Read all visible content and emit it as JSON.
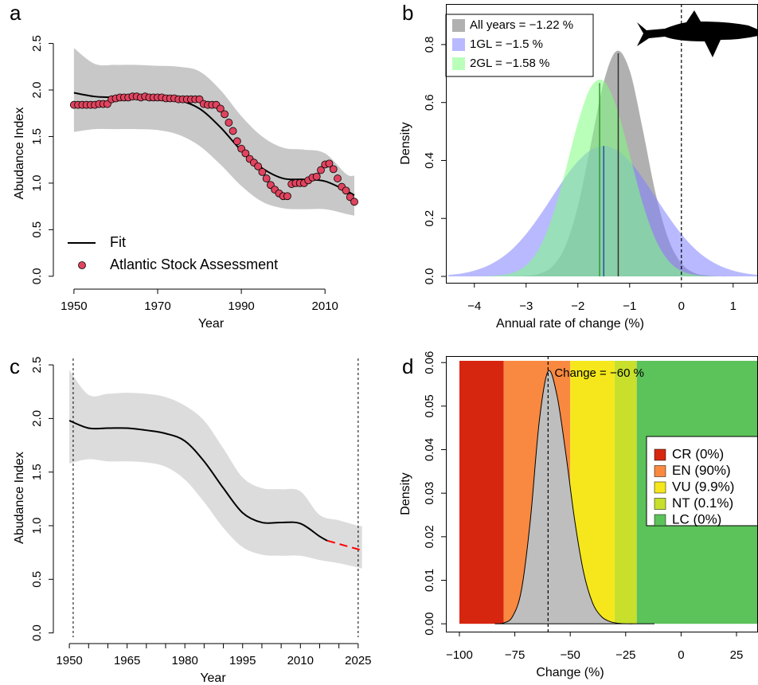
{
  "chart_data": [
    {
      "label": "a",
      "type": "line",
      "xlabel": "Year",
      "ylabel": "Abudance Index",
      "xlim": [
        1946.6,
        2018.9
      ],
      "ylim": [
        -0.07,
        2.71
      ],
      "xticks": [
        1950,
        1970,
        1990,
        2010
      ],
      "yticks": [
        {
          "value": 0,
          "label": "0.0"
        },
        0.5,
        {
          "value": 1,
          "label": "1.0"
        },
        1.5,
        {
          "value": 2,
          "label": "2.0"
        },
        2.5
      ],
      "band": {
        "color": "#c8c8c8",
        "x": [
          1950,
          1955,
          1960,
          1965,
          1970,
          1975,
          1980,
          1985,
          1990,
          1995,
          2000,
          2005,
          2010,
          2015,
          2017
        ],
        "lower": [
          1.55,
          1.58,
          1.58,
          1.58,
          1.57,
          1.52,
          1.4,
          1.2,
          0.97,
          0.8,
          0.73,
          0.72,
          0.72,
          0.67,
          0.65
        ],
        "upper": [
          2.45,
          2.28,
          2.27,
          2.27,
          2.26,
          2.25,
          2.2,
          2.0,
          1.72,
          1.5,
          1.38,
          1.36,
          1.32,
          1.1,
          1.08
        ]
      },
      "series": [
        {
          "name": "Fit",
          "color": "#000000",
          "kind": "line",
          "x": [
            1950,
            1955,
            1960,
            1965,
            1970,
            1975,
            1980,
            1985,
            1990,
            1995,
            2000,
            2005,
            2010,
            2015,
            2017
          ],
          "values": [
            1.97,
            1.93,
            1.92,
            1.92,
            1.91,
            1.89,
            1.8,
            1.6,
            1.35,
            1.16,
            1.05,
            1.04,
            1.02,
            0.92,
            0.87
          ]
        },
        {
          "name": "Atlantic Stock Assessment",
          "color": "#e0445f",
          "kind": "points",
          "x": [
            1950,
            1951,
            1952,
            1953,
            1954,
            1955,
            1956,
            1957,
            1958,
            1959,
            1960,
            1961,
            1962,
            1963,
            1964,
            1965,
            1966,
            1967,
            1968,
            1969,
            1970,
            1971,
            1972,
            1973,
            1974,
            1975,
            1976,
            1977,
            1978,
            1979,
            1980,
            1981,
            1982,
            1983,
            1984,
            1985,
            1986,
            1987,
            1988,
            1989,
            1990,
            1991,
            1992,
            1993,
            1994,
            1995,
            1996,
            1997,
            1998,
            1999,
            2000,
            2001,
            2002,
            2003,
            2004,
            2005,
            2006,
            2007,
            2008,
            2009,
            2010,
            2011,
            2012,
            2013,
            2014,
            2015,
            2016,
            2017
          ],
          "values": [
            1.84,
            1.84,
            1.84,
            1.84,
            1.84,
            1.84,
            1.85,
            1.85,
            1.85,
            1.9,
            1.91,
            1.92,
            1.92,
            1.92,
            1.93,
            1.93,
            1.92,
            1.93,
            1.92,
            1.92,
            1.92,
            1.92,
            1.91,
            1.91,
            1.91,
            1.9,
            1.9,
            1.9,
            1.9,
            1.9,
            1.9,
            1.85,
            1.84,
            1.84,
            1.84,
            1.8,
            1.74,
            1.65,
            1.56,
            1.45,
            1.37,
            1.32,
            1.26,
            1.22,
            1.18,
            1.12,
            1.05,
            0.98,
            0.93,
            0.89,
            0.86,
            0.86,
            0.99,
            1.0,
            1.0,
            1.0,
            1.03,
            1.06,
            1.07,
            1.14,
            1.2,
            1.21,
            1.15,
            1.05,
            0.96,
            0.92,
            0.85,
            0.8
          ]
        }
      ]
    },
    {
      "label": "b",
      "type": "density",
      "xlabel": "Annual rate of change (%)",
      "ylabel": "Density",
      "xlim": [
        -4.55,
        1.48
      ],
      "ylim": [
        -0.022,
        0.94
      ],
      "xticks": [
        {
          "value": -4,
          "label": "−4"
        },
        {
          "value": -3,
          "label": "−3"
        },
        {
          "value": -2,
          "label": "−2"
        },
        {
          "value": -1,
          "label": "−1"
        },
        0,
        1
      ],
      "yticks": [
        {
          "value": 0,
          "label": "0.0"
        },
        0.2,
        0.4,
        0.6,
        0.8
      ],
      "vline": 0,
      "legend": "top-left",
      "x": [
        -4.5,
        -4.25,
        -4,
        -3.75,
        -3.5,
        -3.25,
        -3,
        -2.75,
        -2.5,
        -2.25,
        -2,
        -1.75,
        -1.5,
        -1.25,
        -1,
        -0.75,
        -0.5,
        -0.25,
        0,
        0.25,
        0.5,
        0.75,
        1,
        1.25,
        1.5,
        1.75
      ],
      "series": [
        {
          "name": "All years = −1.22 %",
          "color": "#b0b0b0",
          "line_color": "#333333",
          "opacity": 1,
          "mean": -1.22,
          "values": [
            0,
            0,
            0,
            0,
            0,
            0.0003,
            0.002,
            0.009,
            0.033,
            0.101,
            0.242,
            0.455,
            0.671,
            0.778,
            0.711,
            0.51,
            0.288,
            0.128,
            0.045,
            0.012,
            0.003,
            0,
            0,
            0,
            0,
            0
          ]
        },
        {
          "name": "1GL = −1.5 %",
          "color": "#8080ff",
          "line_color": "#2c4fa0",
          "opacity": 0.55,
          "mean": -1.5,
          "values": [
            0.005,
            0.01,
            0.02,
            0.036,
            0.061,
            0.097,
            0.146,
            0.206,
            0.273,
            0.34,
            0.397,
            0.436,
            0.45,
            0.436,
            0.397,
            0.34,
            0.273,
            0.206,
            0.146,
            0.097,
            0.061,
            0.036,
            0.02,
            0.01,
            0.005,
            0.002
          ]
        },
        {
          "name": "2GL = −1.58 %",
          "color": "#80ff80",
          "line_color": "#2f9a2f",
          "opacity": 0.55,
          "mean": -1.58,
          "values": [
            0,
            0,
            0,
            0.001,
            0.004,
            0.013,
            0.038,
            0.096,
            0.203,
            0.358,
            0.529,
            0.653,
            0.674,
            0.582,
            0.421,
            0.254,
            0.128,
            0.054,
            0.019,
            0.006,
            0.001,
            0,
            0,
            0,
            0,
            0
          ]
        }
      ]
    },
    {
      "label": "c",
      "type": "line",
      "xlabel": "Year",
      "ylabel": "Abudance Index",
      "xlim": [
        1947.5,
        2027.1
      ],
      "ylim": [
        -0.04,
        2.56
      ],
      "xticks": [
        1950,
        1965,
        1980,
        1995,
        2010,
        2025
      ],
      "xminor": [
        1955,
        1960,
        1970,
        1975,
        1985,
        1990,
        2000,
        2005,
        2015,
        2020
      ],
      "yticks": [
        {
          "value": 0,
          "label": "0.0"
        },
        0.5,
        {
          "value": 1,
          "label": "1.0"
        },
        1.5,
        {
          "value": 2,
          "label": "2.0"
        },
        2.5
      ],
      "vlines": [
        1951,
        2025
      ],
      "band": {
        "color": "#dcdcdc",
        "x": [
          1950,
          1955,
          1960,
          1965,
          1970,
          1975,
          1980,
          1985,
          1990,
          1995,
          2000,
          2005,
          2010,
          2015,
          2020,
          2025,
          2026
        ],
        "lower": [
          1.58,
          1.62,
          1.6,
          1.6,
          1.59,
          1.55,
          1.43,
          1.22,
          0.98,
          0.8,
          0.73,
          0.72,
          0.72,
          0.68,
          0.65,
          0.61,
          0.6
        ],
        "upper": [
          2.45,
          2.22,
          2.23,
          2.24,
          2.23,
          2.2,
          2.12,
          1.98,
          1.72,
          1.45,
          1.35,
          1.34,
          1.32,
          1.1,
          1.05,
          1.0,
          1.0
        ]
      },
      "series": [
        {
          "color": "#000000",
          "kind": "line",
          "x": [
            1950,
            1955,
            1960,
            1965,
            1970,
            1975,
            1980,
            1985,
            1990,
            1995,
            2000,
            2005,
            2010,
            2015,
            2017
          ],
          "values": [
            1.98,
            1.91,
            1.91,
            1.91,
            1.89,
            1.86,
            1.79,
            1.6,
            1.35,
            1.12,
            1.03,
            1.03,
            1.02,
            0.9,
            0.86
          ]
        },
        {
          "color": "#ff0000",
          "kind": "dashed",
          "x": [
            2017,
            2026
          ],
          "values": [
            0.86,
            0.77
          ]
        }
      ]
    },
    {
      "label": "d",
      "type": "density",
      "xlabel": "Change (%)",
      "ylabel": "Density",
      "xlim": [
        -106.1,
        34.7
      ],
      "ylim": [
        -0.0018,
        0.0615
      ],
      "xticks": [
        {
          "value": -100,
          "label": "−100"
        },
        {
          "value": -75,
          "label": "−75"
        },
        {
          "value": -50,
          "label": "−50"
        },
        {
          "value": -25,
          "label": "−25"
        },
        0,
        25
      ],
      "yticks": [
        {
          "value": 0,
          "label": "0.00"
        },
        0.01,
        0.02,
        0.03,
        0.04,
        0.05,
        0.06
      ],
      "vline": -60,
      "annotation": "Change = −60 %",
      "legend": "right",
      "zones": [
        {
          "name": "CR (0%)",
          "color": "#d7260f",
          "range": [
            -100,
            -80
          ]
        },
        {
          "name": "EN (90%)",
          "color": "#f98940",
          "range": [
            -80,
            -50
          ]
        },
        {
          "name": "VU (9.9%)",
          "color": "#f5e71c",
          "range": [
            -50,
            -30
          ]
        },
        {
          "name": "NT (0.1%)",
          "color": "#c8e02c",
          "range": [
            -30,
            -20
          ]
        },
        {
          "name": "LC (0%)",
          "color": "#5cc25a",
          "range": [
            -20,
            35
          ]
        }
      ],
      "x": [
        -84,
        -80,
        -76,
        -72,
        -68,
        -64,
        -60,
        -56,
        -52,
        -48,
        -44,
        -40,
        -36,
        -32,
        -28,
        -24,
        -20,
        -16,
        -12
      ],
      "series": [
        {
          "color": "#bebebe",
          "line_color": "#000000",
          "opacity": 1,
          "values": [
            0,
            0.0002,
            0.0017,
            0.0078,
            0.0238,
            0.0464,
            0.058,
            0.0525,
            0.0391,
            0.0238,
            0.0119,
            0.0049,
            0.0017,
            0.0005,
            0.0001,
            0,
            0,
            0,
            0
          ]
        }
      ]
    }
  ]
}
